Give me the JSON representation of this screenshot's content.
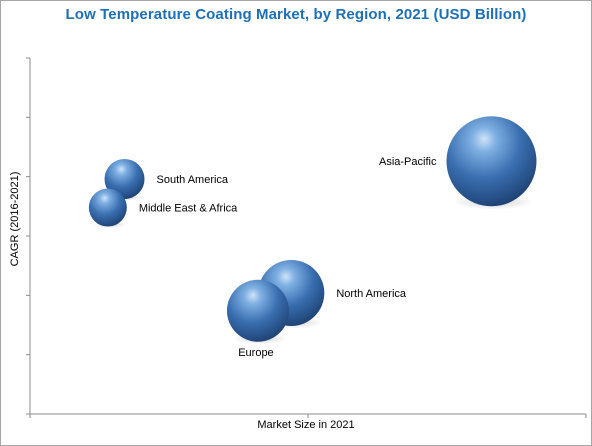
{
  "chart_data": {
    "type": "bubble",
    "title": "Low Temperature Coating Market, by Region, 2021 (USD Billion)",
    "xlabel": "Market Size in 2021",
    "ylabel": "CAGR (2016-2021)",
    "xlim": [
      0,
      100
    ],
    "ylim": [
      0,
      100
    ],
    "grid": false,
    "legend": "none",
    "color": "#3a6fb0",
    "points": [
      {
        "name": "Asia-Pacific",
        "x": 83,
        "y": 71,
        "size": 45,
        "label_side": "left"
      },
      {
        "name": "North America",
        "x": 47,
        "y": 34,
        "size": 33,
        "label_side": "right"
      },
      {
        "name": "Europe",
        "x": 41,
        "y": 29,
        "size": 31,
        "label_side": "below"
      },
      {
        "name": "South America",
        "x": 17,
        "y": 66,
        "size": 20,
        "label_side": "right"
      },
      {
        "name": "Middle East & Africa",
        "x": 14,
        "y": 58,
        "size": 19,
        "label_side": "right"
      }
    ]
  }
}
